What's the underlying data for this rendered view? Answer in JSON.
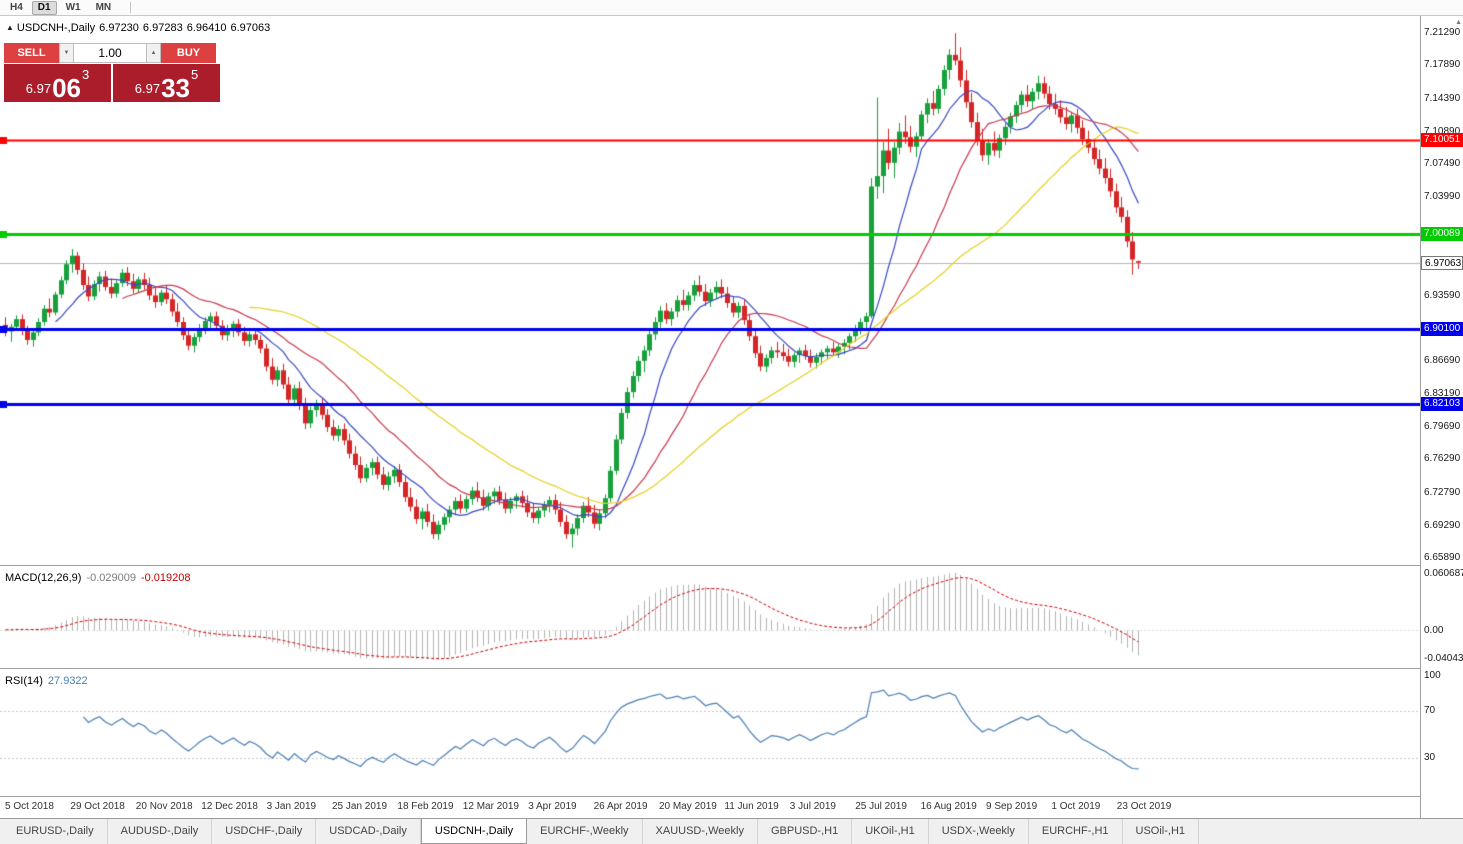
{
  "toolbar": {
    "timeframes": [
      "H4",
      "D1",
      "W1",
      "MN"
    ],
    "active": "D1"
  },
  "header": {
    "symbol": "USDCNH-,Daily",
    "open": "6.97230",
    "high": "6.97283",
    "low": "6.96410",
    "close": "6.97063"
  },
  "icons": {
    "collapse_arrow": "▲",
    "scroll_up_arrow": "▲",
    "volume_up_arrow": "▲",
    "volume_down_arrow": "▼"
  },
  "trade": {
    "sell_label": "SELL",
    "buy_label": "BUY",
    "volume": "1.00",
    "sell_price": {
      "base": "6.97",
      "big": "06",
      "sup": "3",
      "full": "6.97063"
    },
    "buy_price": {
      "base": "6.97",
      "big": "33",
      "sup": "5",
      "full": "6.97335"
    }
  },
  "colors": {
    "trade_button": "#dd4040",
    "price_box": "#ac1d2b",
    "resistance_line": "#ff0000",
    "support_line": "#00cc00",
    "pivot_line": "#0000ee"
  },
  "indicators": {
    "macd": {
      "title": "MACD(12,26,9)",
      "value_main": "-0.029009",
      "value_signal": "-0.019208",
      "axis": [
        "0.060687",
        "0.00",
        "-0.040432"
      ],
      "params": [
        12,
        26,
        9
      ]
    },
    "rsi": {
      "title": "RSI(14)",
      "value": "27.9322",
      "period": 14,
      "levels": [
        "100",
        "70",
        "30"
      ]
    }
  },
  "tabs": {
    "items": [
      "EURUSD-,Daily",
      "AUDUSD-,Daily",
      "USDCHF-,Daily",
      "USDCAD-,Daily",
      "USDCNH-,Daily",
      "EURCHF-,Weekly",
      "XAUUSD-,Weekly",
      "GBPUSD-,H1",
      "UKOil-,H1",
      "USDX-,Weekly",
      "EURCHF-,H1",
      "USOil-,H1"
    ],
    "active_index": 4
  },
  "chart_data": {
    "type": "candlestick",
    "symbol": "USDCNH-",
    "timeframe": "Daily",
    "title": "USDCNH-,Daily",
    "price_scale": 0.0001,
    "y_range": [
      6.6515,
      7.231
    ],
    "y_ticks": [
      "7.21290",
      "7.17890",
      "7.14390",
      "7.10890",
      "7.07490",
      "7.03990",
      "6.93590",
      "6.86690",
      "6.83190",
      "6.79690",
      "6.76290",
      "6.72790",
      "6.69290",
      "6.65890"
    ],
    "x_labels": [
      "5 Oct 2018",
      "29 Oct 2018",
      "20 Nov 2018",
      "12 Dec 2018",
      "3 Jan 2019",
      "25 Jan 2019",
      "18 Feb 2019",
      "12 Mar 2019",
      "3 Apr 2019",
      "26 Apr 2019",
      "20 May 2019",
      "11 Jun 2019",
      "3 Jul 2019",
      "25 Jul 2019",
      "16 Aug 2019",
      "9 Sep 2019",
      "1 Oct 2019",
      "23 Oct 2019"
    ],
    "hlines": [
      {
        "value": 7.10051,
        "label": "7.10051",
        "color": "#ff0000",
        "width": 2
      },
      {
        "value": 7.00089,
        "label": "7.00089",
        "color": "#00cc00",
        "width": 3
      },
      {
        "value": 6.901,
        "label": "6.90100",
        "color": "#0000ee",
        "width": 3
      },
      {
        "value": 6.82103,
        "label": "6.82103",
        "color": "#0000ee",
        "width": 3
      }
    ],
    "current_price": {
      "value": 6.97063,
      "label": "6.97063"
    },
    "moving_averages": [
      {
        "period": 10,
        "color": "#3948c8"
      },
      {
        "period": 22,
        "color": "#c83a50"
      },
      {
        "period": 45,
        "color": "#e6d020"
      }
    ],
    "colors": {
      "up": "#18a03c",
      "down": "#d42626",
      "macd_hist": "#b4b4b4",
      "macd_signal": "#d00000",
      "rsi_line": "#4a7fb5",
      "current_line": "#b8b8b8"
    },
    "candles": [
      [
        69050,
        69130,
        68930,
        68980
      ],
      [
        68980,
        69060,
        68870,
        69030
      ],
      [
        69030,
        69150,
        68990,
        69110
      ],
      [
        69110,
        69160,
        68940,
        68990
      ],
      [
        68990,
        69040,
        68840,
        68890
      ],
      [
        68890,
        69010,
        68820,
        68970
      ],
      [
        68970,
        69120,
        68930,
        69080
      ],
      [
        69080,
        69260,
        69040,
        69220
      ],
      [
        69220,
        69330,
        69130,
        69180
      ],
      [
        69180,
        69400,
        69150,
        69370
      ],
      [
        69370,
        69560,
        69330,
        69520
      ],
      [
        69520,
        69730,
        69480,
        69690
      ],
      [
        69690,
        69850,
        69600,
        69780
      ],
      [
        69780,
        69820,
        69580,
        69630
      ],
      [
        69630,
        69700,
        69420,
        69470
      ],
      [
        69470,
        69560,
        69300,
        69350
      ],
      [
        69350,
        69520,
        69310,
        69480
      ],
      [
        69480,
        69610,
        69400,
        69560
      ],
      [
        69560,
        69620,
        69410,
        69450
      ],
      [
        69450,
        69540,
        69330,
        69380
      ],
      [
        69380,
        69520,
        69340,
        69490
      ],
      [
        69490,
        69640,
        69450,
        69600
      ],
      [
        69600,
        69660,
        69460,
        69510
      ],
      [
        69510,
        69590,
        69380,
        69430
      ],
      [
        69430,
        69560,
        69390,
        69530
      ],
      [
        69530,
        69600,
        69420,
        69470
      ],
      [
        69470,
        69550,
        69310,
        69360
      ],
      [
        69360,
        69450,
        69230,
        69290
      ],
      [
        69290,
        69420,
        69250,
        69390
      ],
      [
        69390,
        69460,
        69270,
        69320
      ],
      [
        69320,
        69380,
        69140,
        69190
      ],
      [
        69190,
        69280,
        69030,
        69080
      ],
      [
        69080,
        69130,
        68890,
        68940
      ],
      [
        68940,
        69010,
        68780,
        68830
      ],
      [
        68830,
        68960,
        68760,
        68920
      ],
      [
        68920,
        69060,
        68870,
        69010
      ],
      [
        69010,
        69130,
        68950,
        69090
      ],
      [
        69090,
        69180,
        69000,
        69140
      ],
      [
        69140,
        69190,
        68990,
        69040
      ],
      [
        69040,
        69100,
        68890,
        68940
      ],
      [
        68940,
        69050,
        68880,
        69000
      ],
      [
        69000,
        69090,
        68920,
        69060
      ],
      [
        69060,
        69110,
        68930,
        68970
      ],
      [
        68970,
        69030,
        68830,
        68880
      ],
      [
        68880,
        68980,
        68820,
        68950
      ],
      [
        68950,
        69010,
        68840,
        68890
      ],
      [
        68890,
        68940,
        68750,
        68800
      ],
      [
        68800,
        68850,
        68560,
        68610
      ],
      [
        68610,
        68700,
        68420,
        68470
      ],
      [
        68470,
        68610,
        68400,
        68570
      ],
      [
        68570,
        68640,
        68370,
        68420
      ],
      [
        68420,
        68500,
        68210,
        68260
      ],
      [
        68260,
        68420,
        68190,
        68380
      ],
      [
        68380,
        68450,
        68150,
        68200
      ],
      [
        68200,
        68280,
        67950,
        68010
      ],
      [
        68010,
        68190,
        67960,
        68150
      ],
      [
        68150,
        68260,
        68080,
        68220
      ],
      [
        68220,
        68270,
        68050,
        68100
      ],
      [
        68100,
        68160,
        67920,
        67970
      ],
      [
        67970,
        68050,
        67830,
        67880
      ],
      [
        67880,
        67990,
        67820,
        67950
      ],
      [
        67950,
        68010,
        67780,
        67830
      ],
      [
        67830,
        67900,
        67640,
        67690
      ],
      [
        67690,
        67770,
        67520,
        67570
      ],
      [
        67570,
        67660,
        67380,
        67430
      ],
      [
        67430,
        67580,
        67390,
        67540
      ],
      [
        67540,
        67640,
        67460,
        67600
      ],
      [
        67600,
        67660,
        67420,
        67470
      ],
      [
        67470,
        67550,
        67310,
        67360
      ],
      [
        67360,
        67500,
        67300,
        67450
      ],
      [
        67450,
        67560,
        67380,
        67520
      ],
      [
        67520,
        67580,
        67340,
        67390
      ],
      [
        67390,
        67450,
        67180,
        67230
      ],
      [
        67230,
        67330,
        67080,
        67130
      ],
      [
        67130,
        67210,
        66950,
        67000
      ],
      [
        67000,
        67120,
        66890,
        67080
      ],
      [
        67080,
        67160,
        66920,
        66970
      ],
      [
        66970,
        67050,
        66790,
        66840
      ],
      [
        66840,
        66980,
        66780,
        66940
      ],
      [
        66940,
        67060,
        66880,
        67020
      ],
      [
        67020,
        67140,
        66960,
        67100
      ],
      [
        67100,
        67230,
        67040,
        67190
      ],
      [
        67190,
        67260,
        67060,
        67110
      ],
      [
        67110,
        67250,
        67070,
        67210
      ],
      [
        67210,
        67340,
        67150,
        67300
      ],
      [
        67300,
        67390,
        67180,
        67230
      ],
      [
        67230,
        67310,
        67090,
        67140
      ],
      [
        67140,
        67280,
        67090,
        67240
      ],
      [
        67240,
        67330,
        67160,
        67290
      ],
      [
        67290,
        67350,
        67150,
        67200
      ],
      [
        67200,
        67280,
        67060,
        67110
      ],
      [
        67110,
        67230,
        67060,
        67190
      ],
      [
        67190,
        67270,
        67110,
        67240
      ],
      [
        67240,
        67300,
        67120,
        67170
      ],
      [
        67170,
        67250,
        67020,
        67070
      ],
      [
        67070,
        67160,
        66960,
        67010
      ],
      [
        67010,
        67130,
        66950,
        67090
      ],
      [
        67090,
        67190,
        67020,
        67150
      ],
      [
        67150,
        67240,
        67070,
        67200
      ],
      [
        67200,
        67260,
        67050,
        67100
      ],
      [
        67100,
        67180,
        66920,
        66970
      ],
      [
        66970,
        67040,
        66790,
        66840
      ],
      [
        66840,
        66950,
        66700,
        66900
      ],
      [
        66900,
        67050,
        66830,
        67010
      ],
      [
        67010,
        67180,
        66960,
        67140
      ],
      [
        67140,
        67230,
        67020,
        67070
      ],
      [
        67070,
        67150,
        66900,
        66950
      ],
      [
        66950,
        67100,
        66880,
        67060
      ],
      [
        67060,
        67260,
        67010,
        67220
      ],
      [
        67220,
        67560,
        67180,
        67510
      ],
      [
        67510,
        67890,
        67470,
        67840
      ],
      [
        67840,
        68170,
        67790,
        68120
      ],
      [
        68120,
        68390,
        68060,
        68340
      ],
      [
        68340,
        68560,
        68280,
        68510
      ],
      [
        68510,
        68720,
        68450,
        68670
      ],
      [
        68670,
        68830,
        68550,
        68780
      ],
      [
        68780,
        69000,
        68720,
        68950
      ],
      [
        68950,
        69130,
        68890,
        69080
      ],
      [
        69080,
        69250,
        69020,
        69200
      ],
      [
        69200,
        69280,
        69060,
        69110
      ],
      [
        69110,
        69230,
        69040,
        69190
      ],
      [
        69190,
        69360,
        69130,
        69310
      ],
      [
        69310,
        69420,
        69200,
        69260
      ],
      [
        69260,
        69400,
        69200,
        69360
      ],
      [
        69360,
        69520,
        69300,
        69470
      ],
      [
        69470,
        69570,
        69350,
        69400
      ],
      [
        69400,
        69480,
        69250,
        69300
      ],
      [
        69300,
        69430,
        69240,
        69390
      ],
      [
        69390,
        69510,
        69330,
        69450
      ],
      [
        69450,
        69530,
        69330,
        69380
      ],
      [
        69380,
        69450,
        69230,
        69280
      ],
      [
        69280,
        69350,
        69130,
        69180
      ],
      [
        69180,
        69290,
        69120,
        69250
      ],
      [
        69250,
        69310,
        69050,
        69100
      ],
      [
        69100,
        69160,
        68880,
        68930
      ],
      [
        68930,
        68990,
        68700,
        68750
      ],
      [
        68750,
        68830,
        68560,
        68610
      ],
      [
        68610,
        68740,
        68550,
        68700
      ],
      [
        68700,
        68820,
        68640,
        68780
      ],
      [
        68780,
        68870,
        68700,
        68760
      ],
      [
        68760,
        68850,
        68670,
        68720
      ],
      [
        68720,
        68800,
        68610,
        68660
      ],
      [
        68660,
        68760,
        68600,
        68730
      ],
      [
        68730,
        68810,
        68650,
        68780
      ],
      [
        68780,
        68840,
        68680,
        68720
      ],
      [
        68720,
        68790,
        68600,
        68650
      ],
      [
        68650,
        68750,
        68590,
        68710
      ],
      [
        68710,
        68790,
        68630,
        68760
      ],
      [
        68760,
        68830,
        68680,
        68800
      ],
      [
        68800,
        68870,
        68720,
        68760
      ],
      [
        68760,
        68850,
        68700,
        68820
      ],
      [
        68820,
        68900,
        68740,
        68860
      ],
      [
        68860,
        68960,
        68790,
        68930
      ],
      [
        68930,
        69050,
        68870,
        69010
      ],
      [
        69010,
        69120,
        68950,
        69080
      ],
      [
        69080,
        69180,
        69010,
        69140
      ],
      [
        69140,
        70600,
        69120,
        70510
      ],
      [
        70510,
        71450,
        70380,
        70620
      ],
      [
        70620,
        70980,
        70440,
        70890
      ],
      [
        70890,
        71120,
        70690,
        70760
      ],
      [
        70760,
        70980,
        70600,
        70920
      ],
      [
        70920,
        71180,
        70850,
        71090
      ],
      [
        71090,
        71260,
        70960,
        71030
      ],
      [
        71030,
        71150,
        70870,
        70930
      ],
      [
        70930,
        71080,
        70820,
        71040
      ],
      [
        71040,
        71310,
        70990,
        71270
      ],
      [
        71270,
        71440,
        71180,
        71390
      ],
      [
        71390,
        71520,
        71260,
        71330
      ],
      [
        71330,
        71580,
        71280,
        71540
      ],
      [
        71540,
        71790,
        71470,
        71740
      ],
      [
        71740,
        71960,
        71640,
        71900
      ],
      [
        71900,
        72129,
        71790,
        71840
      ],
      [
        71840,
        71980,
        71560,
        71630
      ],
      [
        71630,
        71740,
        71340,
        71400
      ],
      [
        71400,
        71500,
        71130,
        71190
      ],
      [
        71190,
        71290,
        70940,
        71000
      ],
      [
        71000,
        71120,
        70780,
        70840
      ],
      [
        70840,
        71010,
        70740,
        70970
      ],
      [
        70970,
        71090,
        70830,
        70890
      ],
      [
        70890,
        71060,
        70810,
        71020
      ],
      [
        71020,
        71180,
        70950,
        71140
      ],
      [
        71140,
        71290,
        71070,
        71250
      ],
      [
        71250,
        71410,
        71180,
        71370
      ],
      [
        71370,
        71520,
        71290,
        71480
      ],
      [
        71480,
        71580,
        71350,
        71410
      ],
      [
        71410,
        71550,
        71330,
        71510
      ],
      [
        71510,
        71680,
        71430,
        71600
      ],
      [
        71600,
        71670,
        71440,
        71490
      ],
      [
        71490,
        71570,
        71320,
        71380
      ],
      [
        71380,
        71490,
        71270,
        71330
      ],
      [
        71330,
        71420,
        71180,
        71240
      ],
      [
        71240,
        71350,
        71110,
        71170
      ],
      [
        71170,
        71300,
        71080,
        71260
      ],
      [
        71260,
        71330,
        71070,
        71130
      ],
      [
        71130,
        71210,
        70950,
        71010
      ],
      [
        71010,
        71100,
        70860,
        70920
      ],
      [
        70920,
        71010,
        70740,
        70800
      ],
      [
        70800,
        70900,
        70640,
        70700
      ],
      [
        70700,
        70810,
        70540,
        70600
      ],
      [
        70600,
        70700,
        70400,
        70460
      ],
      [
        70460,
        70540,
        70230,
        70290
      ],
      [
        70290,
        70400,
        70130,
        70190
      ],
      [
        70190,
        70260,
        69870,
        69930
      ],
      [
        69930,
        70030,
        69580,
        69740
      ],
      [
        69723,
        69728,
        69641,
        69706
      ]
    ]
  }
}
